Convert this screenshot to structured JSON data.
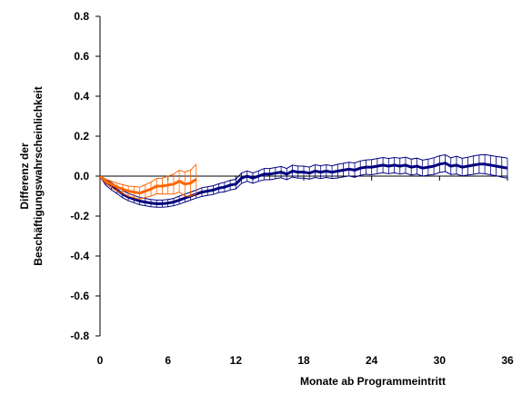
{
  "chart_data": {
    "type": "line",
    "title": "",
    "xlabel": "Monate ab Programmeintritt",
    "ylabel_lines": [
      "Differenz der",
      "Beschäftigungswahrscheinlichkeit"
    ],
    "xlim": [
      0,
      36
    ],
    "ylim": [
      -0.8,
      0.8
    ],
    "x_ticks": [
      0,
      6,
      12,
      18,
      24,
      30,
      36
    ],
    "x_tick_labels": [
      "0",
      "6",
      "12",
      "18",
      "24",
      "30",
      "36"
    ],
    "y_ticks": [
      0.8,
      0.6,
      0.4,
      0.2,
      0.0,
      -0.2,
      -0.4,
      -0.6,
      -0.8
    ],
    "y_tick_labels": [
      "0.8",
      "0.6",
      "0.4",
      "0.2",
      "0.0",
      "-0.2",
      "-0.4",
      "-0.6",
      "-0.8"
    ],
    "grid": false,
    "legend": "none",
    "series": [
      {
        "color": "#00007f",
        "x": [
          0,
          0.5,
          1,
          1.5,
          2,
          2.5,
          3,
          3.5,
          4,
          4.5,
          5,
          5.5,
          6,
          6.5,
          7,
          7.5,
          8,
          8.5,
          9,
          9.5,
          10,
          10.5,
          11,
          11.5,
          12,
          12.5,
          13,
          13.5,
          14,
          14.5,
          15,
          15.5,
          16,
          16.5,
          17,
          17.5,
          18,
          18.5,
          19,
          19.5,
          20,
          20.5,
          21,
          21.5,
          22,
          22.5,
          23,
          23.5,
          24,
          24.5,
          25,
          25.5,
          26,
          26.5,
          27,
          27.5,
          28,
          28.5,
          29,
          29.5,
          30,
          30.5,
          31,
          31.5,
          32,
          32.5,
          33,
          33.5,
          34,
          34.5,
          35,
          35.5,
          36
        ],
        "values": [
          0,
          -0.03,
          -0.05,
          -0.07,
          -0.09,
          -0.105,
          -0.115,
          -0.125,
          -0.13,
          -0.135,
          -0.138,
          -0.138,
          -0.135,
          -0.13,
          -0.12,
          -0.11,
          -0.1,
          -0.09,
          -0.08,
          -0.075,
          -0.07,
          -0.06,
          -0.055,
          -0.045,
          -0.04,
          -0.01,
          0.0,
          -0.01,
          0.0,
          0.01,
          0.01,
          0.015,
          0.02,
          0.01,
          0.025,
          0.02,
          0.02,
          0.015,
          0.025,
          0.02,
          0.025,
          0.02,
          0.025,
          0.03,
          0.035,
          0.03,
          0.04,
          0.045,
          0.045,
          0.05,
          0.055,
          0.05,
          0.055,
          0.05,
          0.055,
          0.045,
          0.05,
          0.04,
          0.045,
          0.05,
          0.06,
          0.065,
          0.05,
          0.055,
          0.045,
          0.05,
          0.055,
          0.06,
          0.06,
          0.055,
          0.05,
          0.045,
          0.04
        ],
        "ci_half_width": [
          0,
          0.015,
          0.018,
          0.018,
          0.018,
          0.018,
          0.018,
          0.018,
          0.018,
          0.018,
          0.018,
          0.018,
          0.018,
          0.018,
          0.02,
          0.02,
          0.02,
          0.02,
          0.022,
          0.022,
          0.022,
          0.022,
          0.024,
          0.024,
          0.024,
          0.026,
          0.026,
          0.026,
          0.026,
          0.028,
          0.028,
          0.028,
          0.028,
          0.028,
          0.03,
          0.03,
          0.03,
          0.03,
          0.032,
          0.032,
          0.032,
          0.032,
          0.034,
          0.034,
          0.034,
          0.036,
          0.036,
          0.036,
          0.038,
          0.038,
          0.038,
          0.038,
          0.038,
          0.04,
          0.04,
          0.04,
          0.04,
          0.04,
          0.04,
          0.042,
          0.042,
          0.042,
          0.042,
          0.044,
          0.044,
          0.044,
          0.046,
          0.046,
          0.048,
          0.048,
          0.048,
          0.05,
          0.05
        ]
      },
      {
        "color": "#ff6600",
        "x": [
          0,
          0.5,
          1,
          1.5,
          2,
          2.5,
          3,
          3.5,
          4,
          4.5,
          5,
          5.5,
          6,
          6.5,
          7,
          7.5,
          8,
          8.5
        ],
        "values": [
          0,
          -0.025,
          -0.04,
          -0.055,
          -0.065,
          -0.075,
          -0.08,
          -0.085,
          -0.075,
          -0.065,
          -0.05,
          -0.05,
          -0.045,
          -0.04,
          -0.025,
          -0.04,
          -0.035,
          -0.015
        ],
        "ci_half_width": [
          0,
          0.01,
          0.015,
          0.02,
          0.022,
          0.025,
          0.028,
          0.03,
          0.032,
          0.035,
          0.038,
          0.04,
          0.045,
          0.05,
          0.055,
          0.06,
          0.065,
          0.075
        ]
      }
    ]
  }
}
